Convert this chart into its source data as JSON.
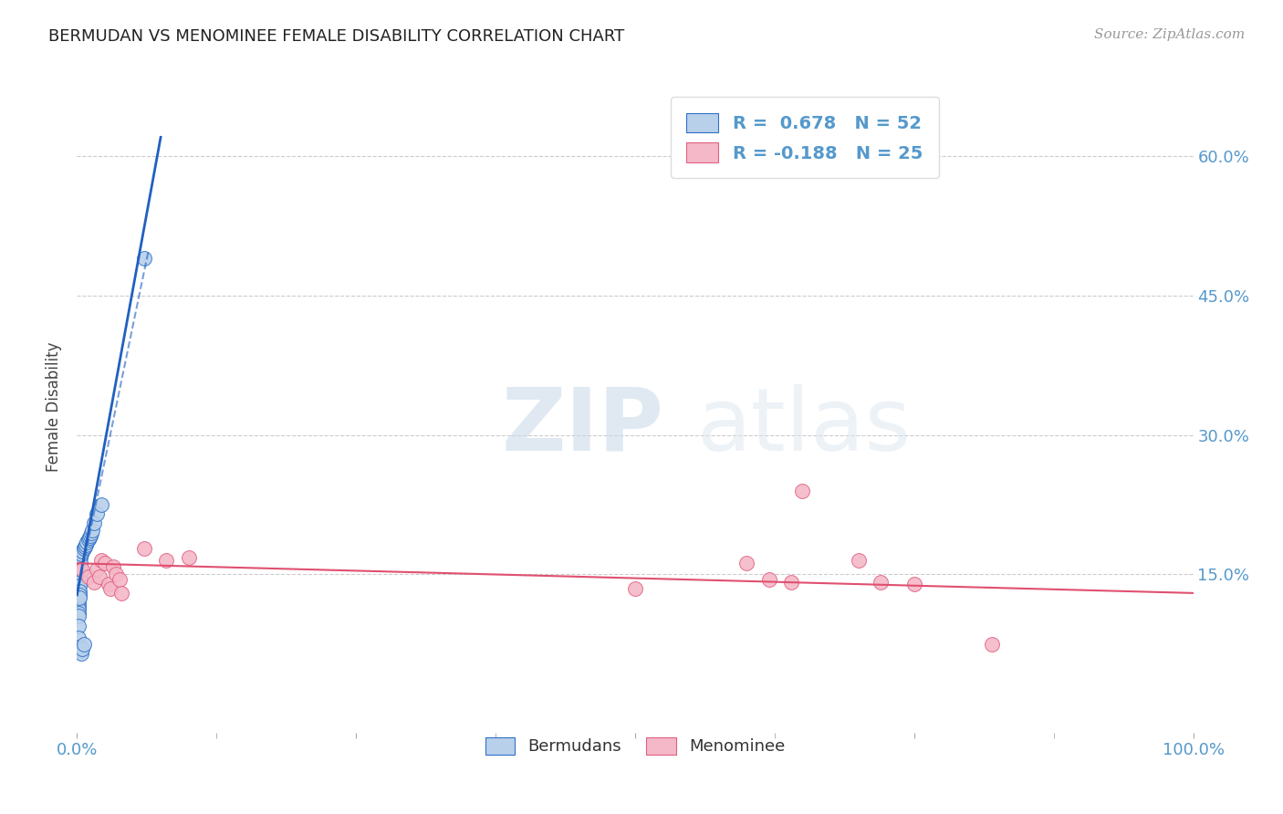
{
  "title": "BERMUDAN VS MENOMINEE FEMALE DISABILITY CORRELATION CHART",
  "source": "Source: ZipAtlas.com",
  "ylabel": "Female Disability",
  "xlim": [
    0.0,
    1.0
  ],
  "ylim": [
    -0.02,
    0.68
  ],
  "yticks": [
    0.15,
    0.3,
    0.45,
    0.6
  ],
  "ytick_labels": [
    "15.0%",
    "30.0%",
    "45.0%",
    "60.0%"
  ],
  "xticks": [
    0.0,
    0.25,
    0.5,
    0.75,
    1.0
  ],
  "xtick_labels": [
    "0.0%",
    "",
    "",
    "",
    "100.0%"
  ],
  "blue_R": 0.678,
  "blue_N": 52,
  "pink_R": -0.188,
  "pink_N": 25,
  "blue_fill": "#b8d0ea",
  "pink_fill": "#f4b8c8",
  "blue_edge": "#3070c8",
  "pink_edge": "#e06080",
  "blue_line": "#2060c0",
  "pink_line": "#e05070",
  "tick_color": "#5599cc",
  "label_color": "#444444",
  "watermark1": "ZIP",
  "watermark2": "atlas",
  "blue_scatter_x": [
    0.001,
    0.001,
    0.001,
    0.001,
    0.001,
    0.001,
    0.001,
    0.001,
    0.001,
    0.001,
    0.001,
    0.001,
    0.001,
    0.001,
    0.001,
    0.001,
    0.001,
    0.001,
    0.001,
    0.001,
    0.002,
    0.002,
    0.002,
    0.002,
    0.002,
    0.002,
    0.002,
    0.002,
    0.002,
    0.002,
    0.003,
    0.003,
    0.003,
    0.003,
    0.004,
    0.004,
    0.005,
    0.005,
    0.006,
    0.006,
    0.007,
    0.008,
    0.009,
    0.01,
    0.011,
    0.012,
    0.013,
    0.014,
    0.015,
    0.018,
    0.022,
    0.06
  ],
  "blue_scatter_y": [
    0.155,
    0.15,
    0.148,
    0.145,
    0.142,
    0.14,
    0.138,
    0.135,
    0.133,
    0.13,
    0.128,
    0.125,
    0.122,
    0.118,
    0.115,
    0.112,
    0.108,
    0.105,
    0.095,
    0.082,
    0.162,
    0.158,
    0.152,
    0.148,
    0.145,
    0.138,
    0.132,
    0.128,
    0.125,
    0.072,
    0.168,
    0.162,
    0.155,
    0.068,
    0.172,
    0.065,
    0.175,
    0.07,
    0.178,
    0.075,
    0.18,
    0.182,
    0.185,
    0.188,
    0.19,
    0.192,
    0.195,
    0.198,
    0.205,
    0.215,
    0.225,
    0.49
  ],
  "pink_scatter_x": [
    0.005,
    0.01,
    0.015,
    0.018,
    0.02,
    0.022,
    0.025,
    0.028,
    0.03,
    0.032,
    0.035,
    0.038,
    0.04,
    0.06,
    0.08,
    0.1,
    0.5,
    0.6,
    0.62,
    0.64,
    0.65,
    0.7,
    0.72,
    0.75,
    0.82
  ],
  "pink_scatter_y": [
    0.155,
    0.148,
    0.142,
    0.155,
    0.148,
    0.165,
    0.162,
    0.14,
    0.135,
    0.158,
    0.15,
    0.145,
    0.13,
    0.178,
    0.165,
    0.168,
    0.135,
    0.162,
    0.145,
    0.142,
    0.24,
    0.165,
    0.142,
    0.14,
    0.075
  ],
  "blue_trend_x": [
    0.0,
    0.075
  ],
  "blue_trend_y": [
    0.128,
    0.62
  ],
  "pink_trend_x": [
    0.0,
    1.0
  ],
  "pink_trend_y": [
    0.162,
    0.13
  ]
}
